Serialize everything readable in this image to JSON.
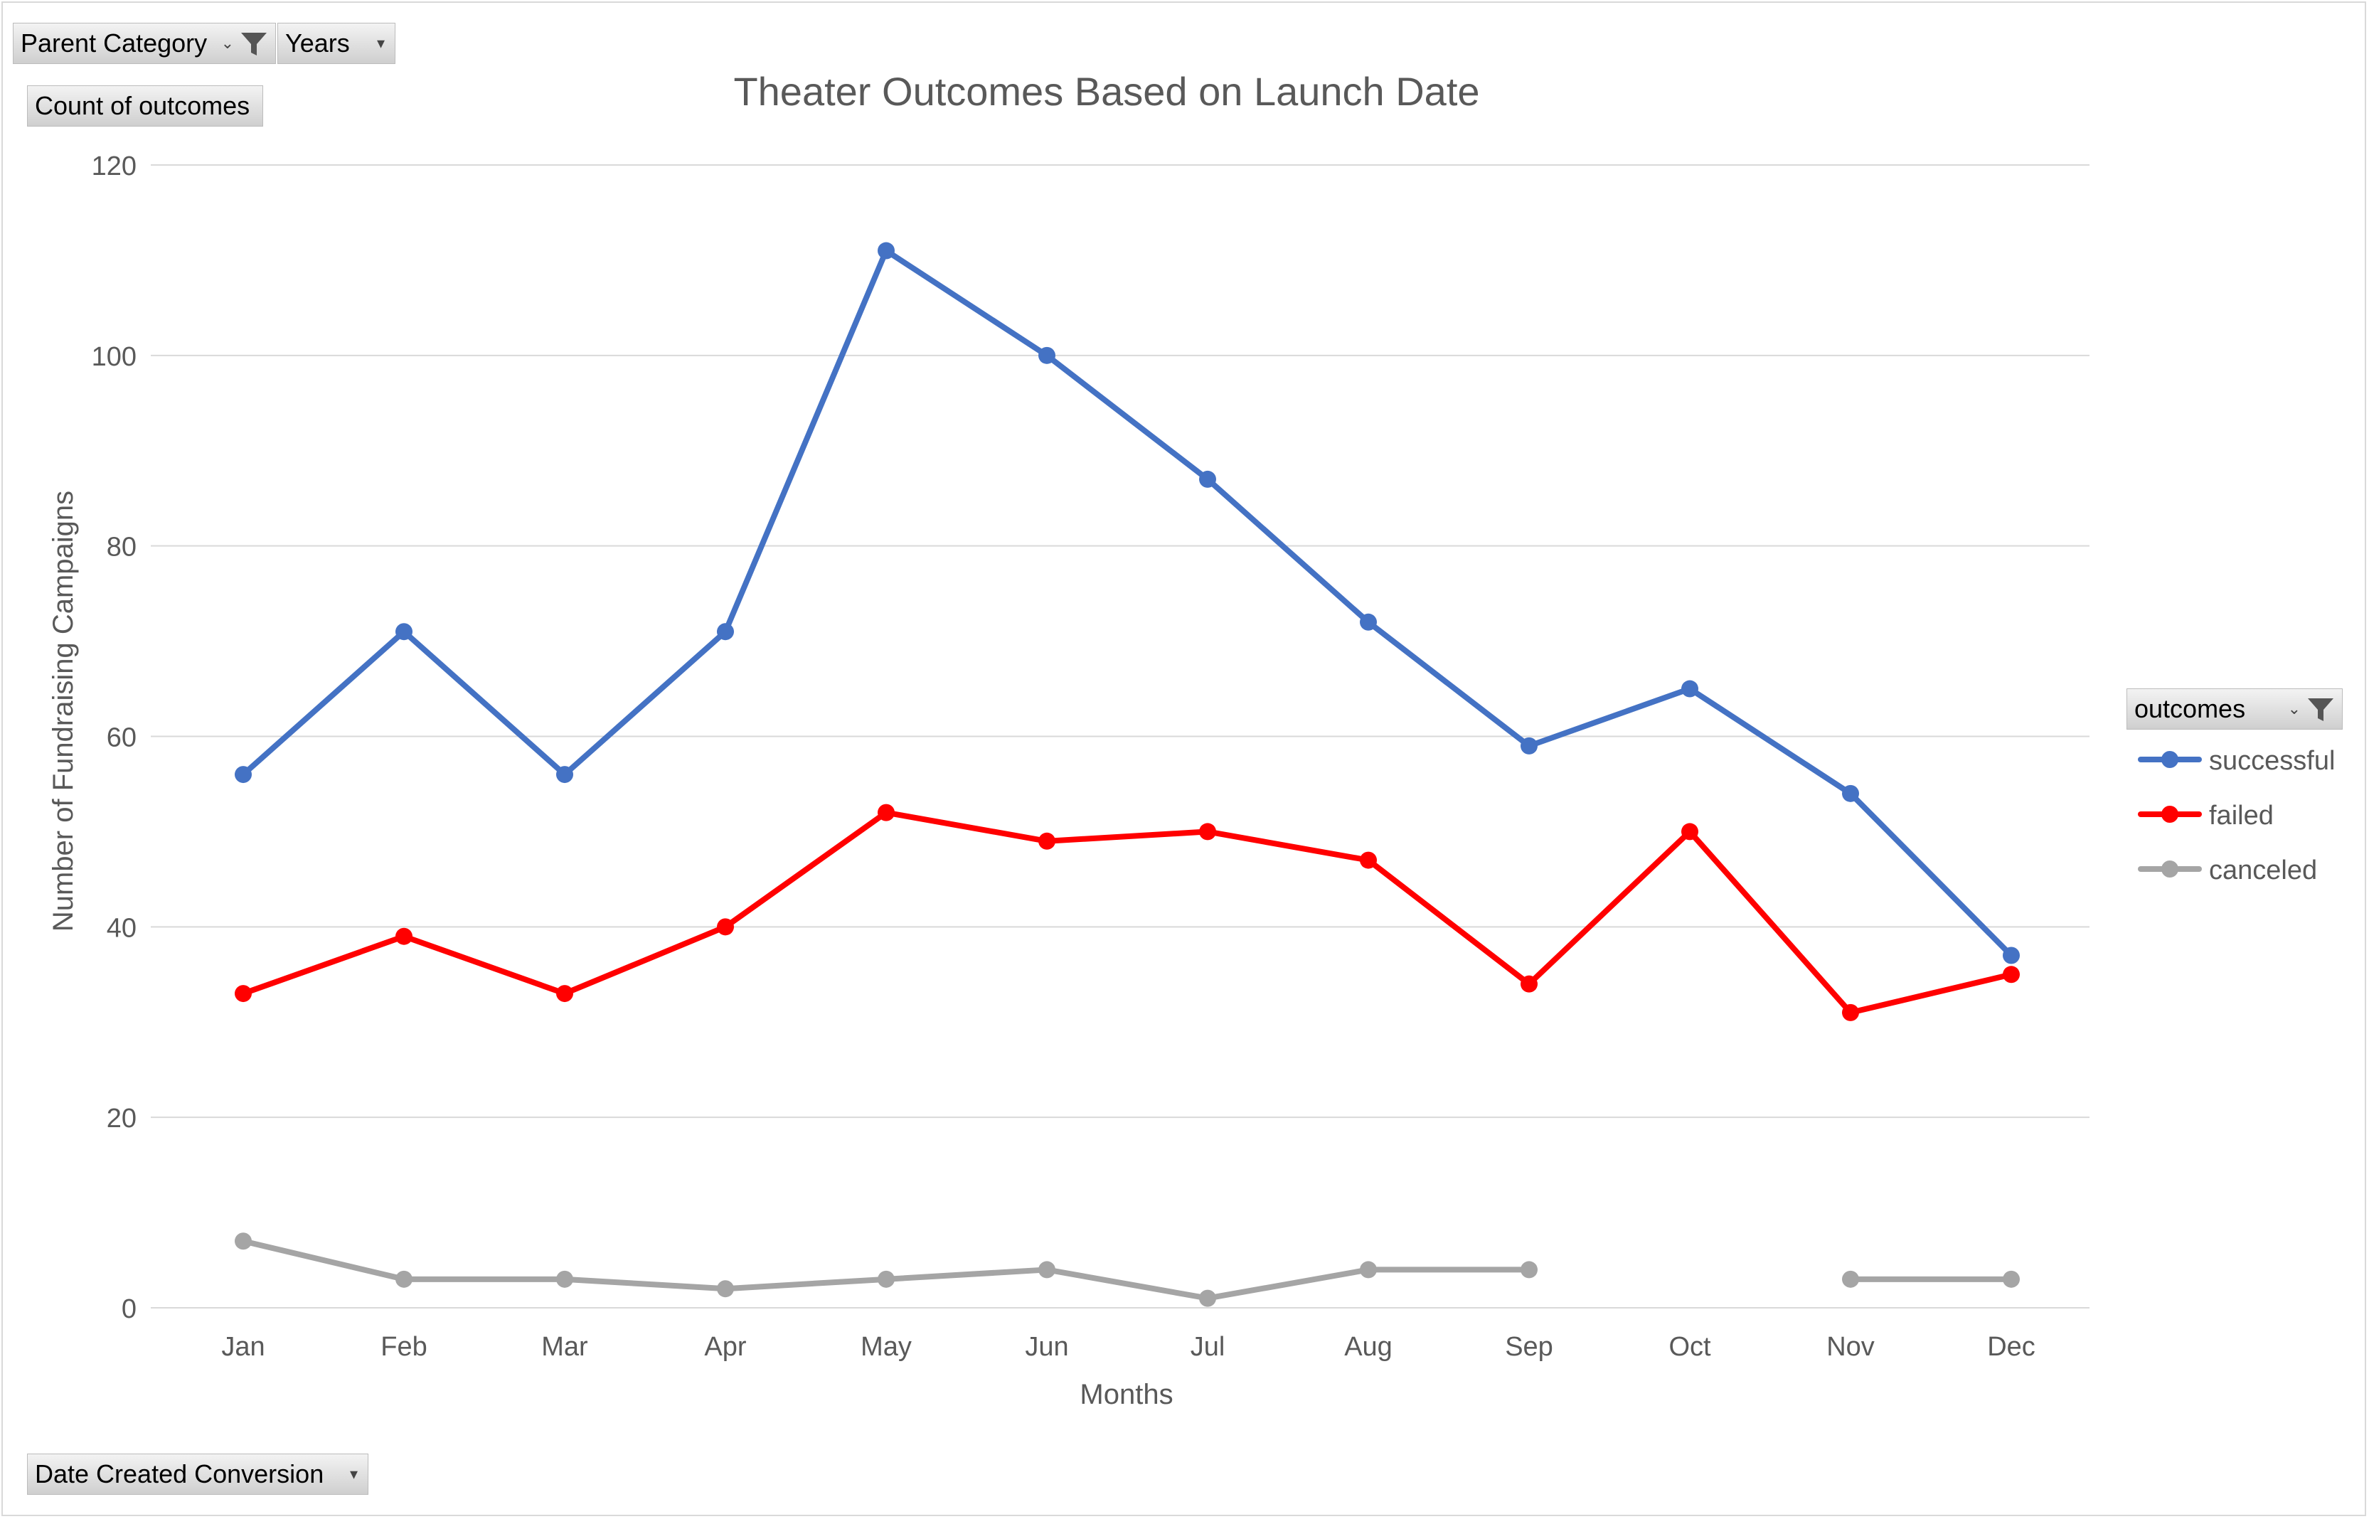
{
  "filters": {
    "parent_category": "Parent Category",
    "years": "Years",
    "values_field": "Count of outcomes",
    "axis_field": "Date Created Conversion",
    "legend_field": "outcomes"
  },
  "chart_data": {
    "type": "line",
    "title": "Theater Outcomes Based on Launch Date",
    "xlabel": "Months",
    "ylabel": "Number of Fundraising Campaigns",
    "categories": [
      "Jan",
      "Feb",
      "Mar",
      "Apr",
      "May",
      "Jun",
      "Jul",
      "Aug",
      "Sep",
      "Oct",
      "Nov",
      "Dec"
    ],
    "ylim": [
      0,
      120
    ],
    "yticks": [
      0,
      20,
      40,
      60,
      80,
      100,
      120
    ],
    "grid": true,
    "legend_position": "right",
    "series": [
      {
        "name": "successful",
        "color": "#4472C4",
        "values": [
          56,
          71,
          56,
          71,
          111,
          100,
          87,
          72,
          59,
          65,
          54,
          37
        ]
      },
      {
        "name": "failed",
        "color": "#FF0000",
        "values": [
          33,
          39,
          33,
          40,
          52,
          49,
          50,
          47,
          34,
          50,
          31,
          35
        ]
      },
      {
        "name": "canceled",
        "color": "#A5A5A5",
        "values": [
          7,
          3,
          3,
          2,
          3,
          4,
          1,
          4,
          4,
          null,
          3,
          3
        ]
      }
    ]
  }
}
